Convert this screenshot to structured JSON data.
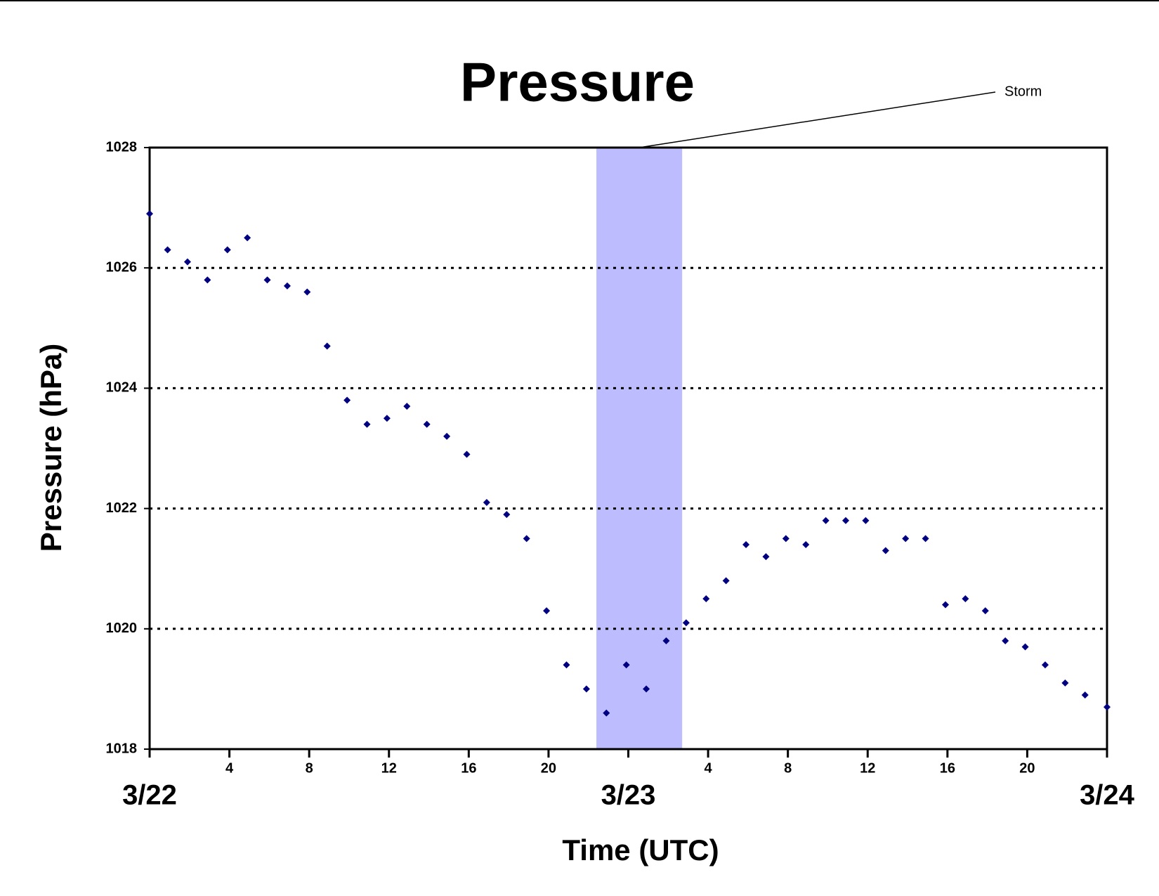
{
  "chart_data": {
    "type": "scatter",
    "title": "Pressure",
    "x_label": "Time (UTC)",
    "y_label": "Pressure (hPa)",
    "xlim": [
      0,
      48
    ],
    "ylim": [
      1018,
      1028
    ],
    "xticks": [
      {
        "value": 0,
        "label": "3/22",
        "major": true
      },
      4,
      8,
      12,
      16,
      20,
      {
        "value": 24,
        "label": "3/23",
        "major": true
      },
      {
        "value": 28,
        "label": "4"
      },
      {
        "value": 32,
        "label": "8"
      },
      {
        "value": 36,
        "label": "12"
      },
      {
        "value": 40,
        "label": "16"
      },
      {
        "value": 44,
        "label": "20"
      },
      {
        "value": 48,
        "label": "3/24",
        "major": true
      }
    ],
    "yticks": [
      1018,
      1020,
      1022,
      1024,
      1026,
      1028
    ],
    "grid": true,
    "band": {
      "label": "Storm",
      "xlim": [
        22.4,
        26.7
      ],
      "color": "#bcbcff"
    },
    "series": [
      {
        "color": "#000080",
        "x": [
          0,
          0.9,
          1.9,
          2.9,
          3.9,
          4.9,
          5.9,
          6.9,
          7.9,
          8.9,
          9.9,
          10.9,
          11.9,
          12.9,
          13.9,
          14.9,
          15.9,
          16.9,
          17.9,
          18.9,
          19.9,
          20.9,
          21.9,
          22.9,
          23.9,
          24.9,
          25.9,
          26.9,
          27.9,
          28.9,
          29.9,
          30.9,
          31.9,
          32.9,
          33.9,
          34.9,
          35.9,
          36.9,
          37.9,
          38.9,
          39.9,
          40.9,
          41.9,
          42.9,
          43.9,
          44.9,
          45.9,
          46.9,
          48
        ],
        "values": [
          1026.9,
          1026.3,
          1026.1,
          1025.8,
          1026.3,
          1026.5,
          1025.8,
          1025.7,
          1025.6,
          1024.7,
          1023.8,
          1023.4,
          1023.5,
          1023.7,
          1023.4,
          1023.2,
          1022.9,
          1022.1,
          1021.9,
          1021.5,
          1020.3,
          1019.4,
          1019.0,
          1018.6,
          1019.4,
          1019.0,
          1019.8,
          1020.1,
          1020.5,
          1020.8,
          1021.4,
          1021.2,
          1021.5,
          1021.4,
          1021.8,
          1021.8,
          1021.8,
          1021.3,
          1021.5,
          1021.5,
          1020.4,
          1020.5,
          1020.3,
          1019.8,
          1019.7,
          1019.4,
          1019.1,
          1018.9,
          1018.7
        ]
      }
    ]
  }
}
